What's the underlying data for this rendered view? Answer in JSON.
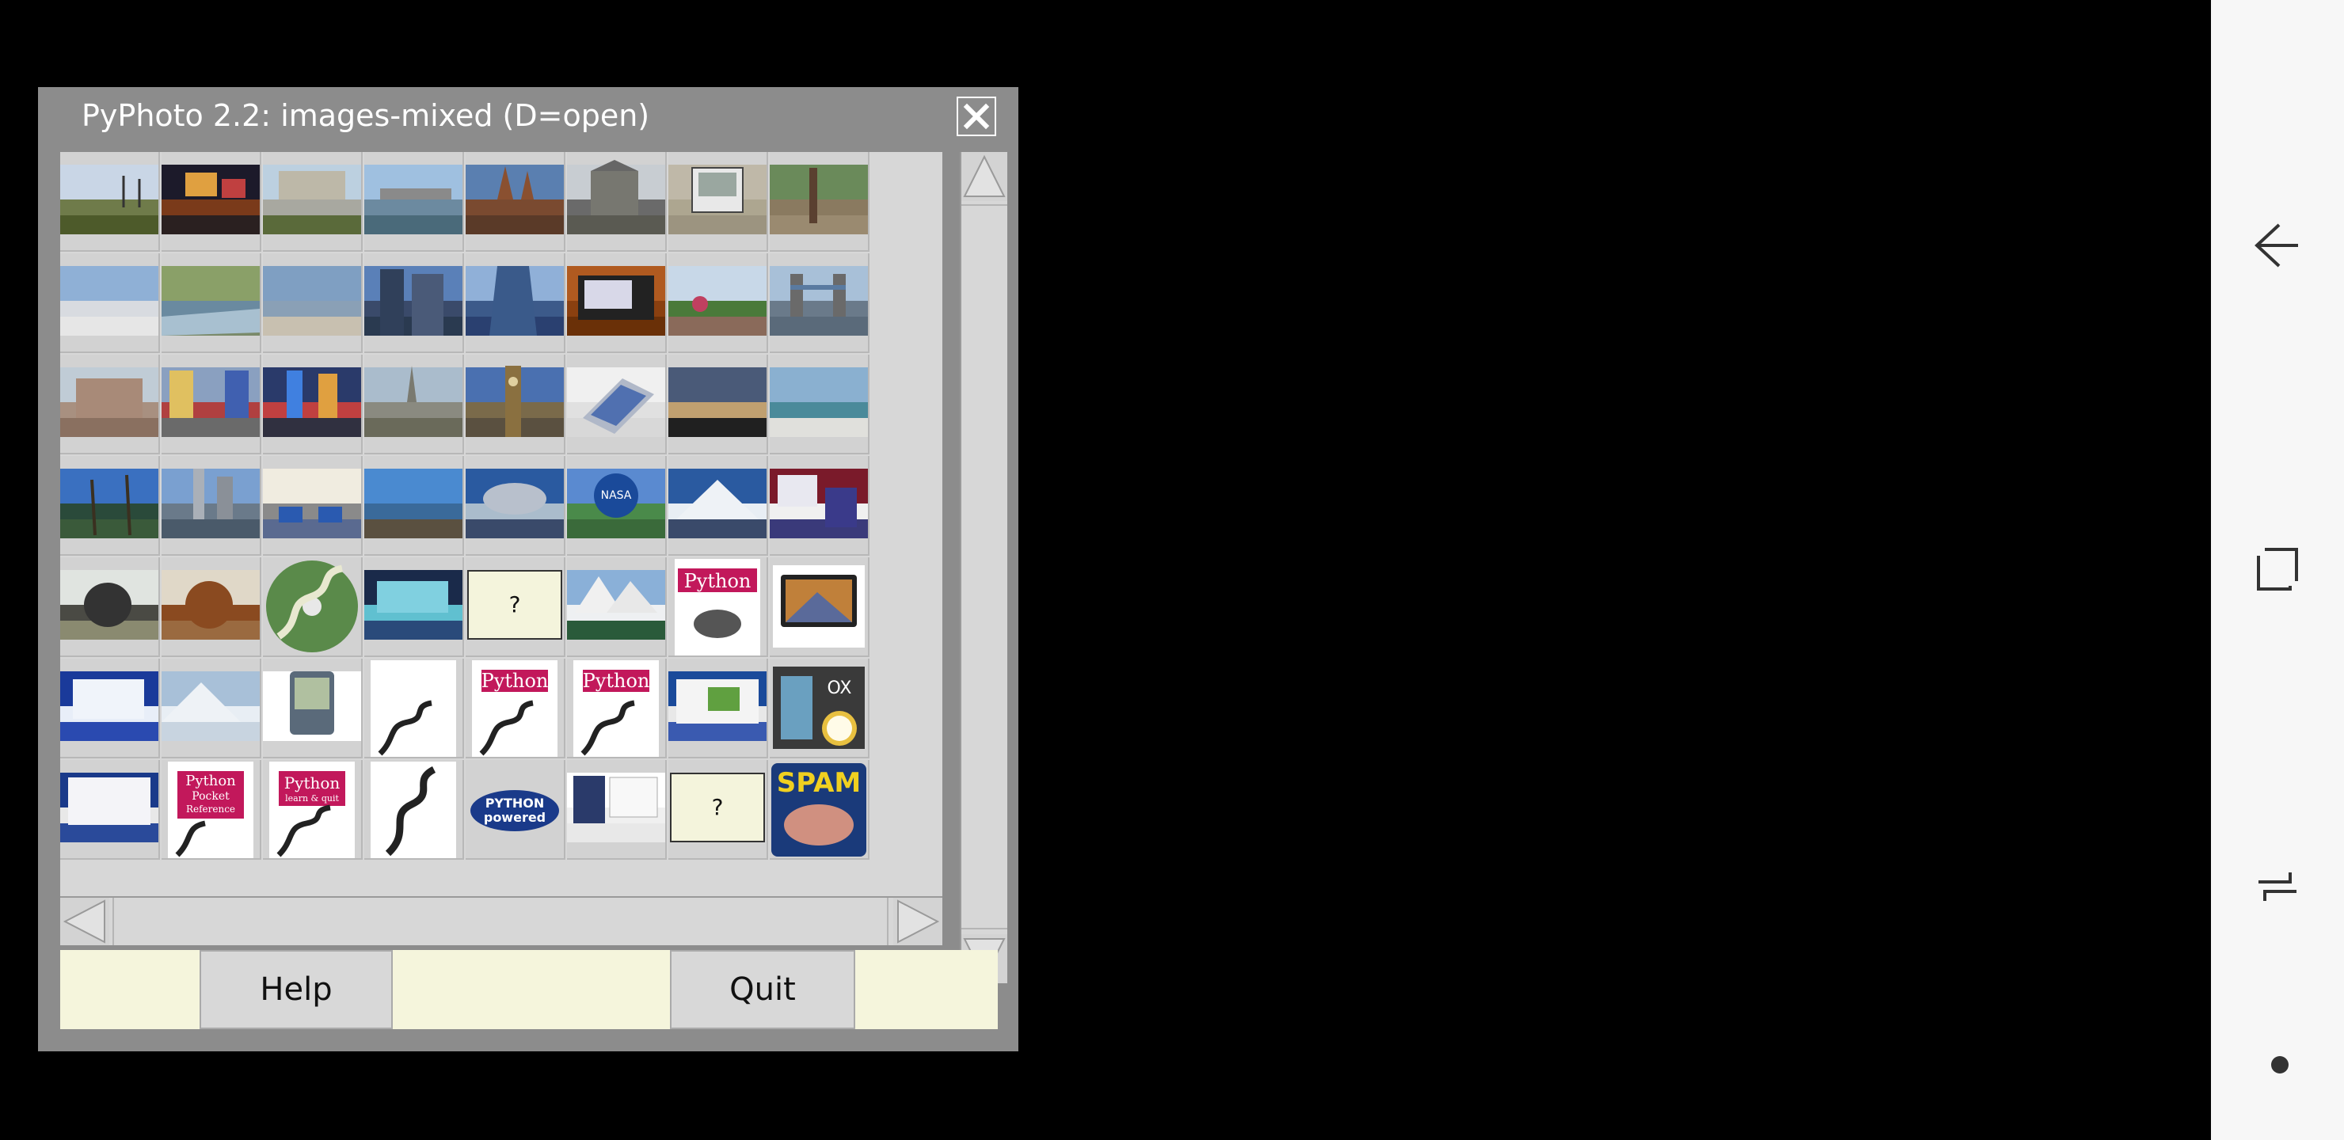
{
  "window": {
    "title": "PyPhoto 2.2: images-mixed (D=open)",
    "close_icon": "close-icon",
    "title_bar_color": "#8c8c8c"
  },
  "thumbnails": {
    "columns": 8,
    "rows": 7,
    "placeholder_label": "?",
    "items": [
      {
        "kind": "park-trees"
      },
      {
        "kind": "night-street"
      },
      {
        "kind": "old-building"
      },
      {
        "kind": "harbor-city"
      },
      {
        "kind": "cathedral-spires"
      },
      {
        "kind": "church-stone"
      },
      {
        "kind": "handheld-device"
      },
      {
        "kind": "forest-rocks"
      },
      {
        "kind": "snow-beach"
      },
      {
        "kind": "river-woods"
      },
      {
        "kind": "ocean-beach"
      },
      {
        "kind": "skyscrapers"
      },
      {
        "kind": "glass-tower"
      },
      {
        "kind": "wood-device"
      },
      {
        "kind": "atrium-garden"
      },
      {
        "kind": "tower-bridge"
      },
      {
        "kind": "castle-palace"
      },
      {
        "kind": "times-square"
      },
      {
        "kind": "city-night-lights"
      },
      {
        "kind": "stone-church"
      },
      {
        "kind": "big-ben"
      },
      {
        "kind": "laptop-small"
      },
      {
        "kind": "sunset-sky"
      },
      {
        "kind": "sea-waves"
      },
      {
        "kind": "palm-trees"
      },
      {
        "kind": "city-waterfront"
      },
      {
        "kind": "classroom"
      },
      {
        "kind": "rocky-coast"
      },
      {
        "kind": "dome-building"
      },
      {
        "kind": "nasa-globe"
      },
      {
        "kind": "snow-mountain"
      },
      {
        "kind": "web-pages"
      },
      {
        "kind": "gorilla"
      },
      {
        "kind": "orangutan"
      },
      {
        "kind": "python-snake-cd"
      },
      {
        "kind": "desktop-screen"
      },
      {
        "kind": "placeholder"
      },
      {
        "kind": "mountain-lake"
      },
      {
        "kind": "python-book-rat"
      },
      {
        "kind": "macbook"
      },
      {
        "kind": "windows-desktop"
      },
      {
        "kind": "snowy-mountains"
      },
      {
        "kind": "palm-pda"
      },
      {
        "kind": "python-book-snake"
      },
      {
        "kind": "python-book-magenta"
      },
      {
        "kind": "python-book-magenta-2"
      },
      {
        "kind": "browser-screenshot"
      },
      {
        "kind": "calculator-clock"
      },
      {
        "kind": "spreadsheet-screen"
      },
      {
        "kind": "python-pocket-ref"
      },
      {
        "kind": "python-learn-quick"
      },
      {
        "kind": "snake-drawing"
      },
      {
        "kind": "python-powered-logo"
      },
      {
        "kind": "web-page-tower"
      },
      {
        "kind": "placeholder"
      },
      {
        "kind": "spam-can"
      }
    ]
  },
  "logo_text": {
    "python": "Python",
    "pocket": "Pocket",
    "reference": "Reference",
    "learn": "learn & quit",
    "powered_top": "PYTHON",
    "powered_bottom": "powered",
    "spam": "SPAM"
  },
  "scrollbars": {
    "vertical_up_icon": "triangle-up-icon",
    "vertical_down_icon": "triangle-down-icon",
    "horizontal_left_icon": "triangle-left-icon",
    "horizontal_right_icon": "triangle-right-icon"
  },
  "buttons": {
    "help_label": "Help",
    "quit_label": "Quit"
  },
  "colors": {
    "button_bar": "#f5f5dc",
    "placeholder_bg": "#f4f4dc",
    "python_magenta": "#c2185b"
  },
  "nav_bar": {
    "back_icon": "back-arrow-icon",
    "recent_icon": "recent-apps-icon",
    "home_icon": "home-icon",
    "dot_icon": "dot-icon"
  }
}
